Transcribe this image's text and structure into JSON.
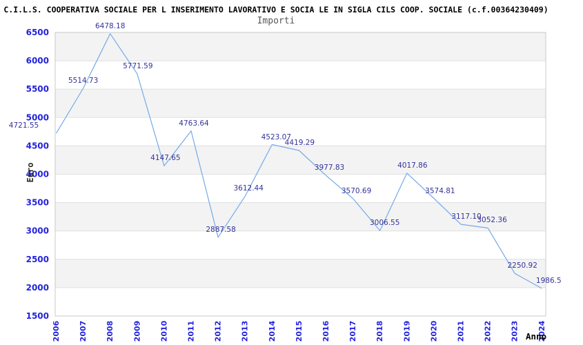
{
  "window": {
    "title": "C.I.L.S. COOPERATIVA SOCIALE PER L INSERIMENTO LAVORATIVO E SOCIA LE IN SIGLA CILS COOP. SOCIALE (c.f.00364230409)",
    "subtitle": "Importi"
  },
  "chart_data": {
    "type": "line",
    "title": "C.I.L.S. COOPERATIVA SOCIALE PER L INSERIMENTO LAVORATIVO E SOCIA LE IN SIGLA CILS COOP. SOCIALE (c.f.00364230409)",
    "subtitle": "Importi",
    "xlabel": "Anno",
    "ylabel": "Euro",
    "x": [
      2006,
      2007,
      2008,
      2009,
      2010,
      2011,
      2012,
      2013,
      2014,
      2015,
      2016,
      2017,
      2018,
      2019,
      2020,
      2021,
      2022,
      2023,
      2024
    ],
    "series": [
      {
        "name": "Importi",
        "values": [
          4721.55,
          5514.73,
          6478.18,
          5771.59,
          4147.65,
          4763.64,
          2887.58,
          3612.44,
          4523.07,
          4419.29,
          3977.83,
          3570.69,
          3006.55,
          4017.86,
          3574.81,
          3117.1,
          3052.36,
          2250.92,
          1986.5
        ]
      }
    ],
    "point_labels": [
      "4721.55",
      "5514.73",
      "6478.18",
      "5771.59",
      "4147.65",
      "4763.64",
      "2887.58",
      "3612.44",
      "4523.07",
      "4419.29",
      "3977.83",
      "3570.69",
      "3006.55",
      "4017.86",
      "3574.81",
      "3117.10",
      "3052.36",
      "2250.92",
      "1986.5"
    ],
    "y_ticks": [
      1500,
      2000,
      2500,
      3000,
      3500,
      4000,
      4500,
      5000,
      5500,
      6000,
      6500
    ],
    "ylim": [
      1500,
      6500
    ],
    "grid": "horizontal lines with alternating shaded bands every 500",
    "legend": "none",
    "colors": {
      "line": "#74AAE7",
      "point_label": "#333399",
      "tick_label": "#2323DE",
      "band": "#F3F3F3",
      "grid_line": "#E0E0E0",
      "border": "#C9C9C9",
      "title": "#000000",
      "subtitle": "#565656",
      "axis_title": "#2B2B2B"
    }
  }
}
